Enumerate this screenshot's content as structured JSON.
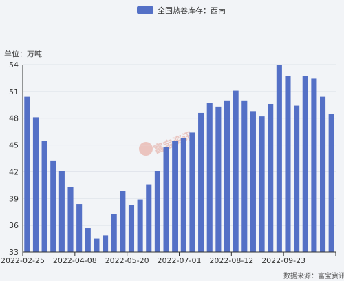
{
  "chart_data": {
    "type": "bar",
    "legend": "全国热卷库存：西南",
    "unit_label": "单位：万吨",
    "source": "数据来源：富宝资讯",
    "watermark": "富宝资讯",
    "colors": {
      "bar": "#5470c6",
      "grid": "#dfe3ea",
      "axis": "#333333"
    },
    "ylim": [
      33,
      54
    ],
    "yticks": [
      33,
      36,
      39,
      42,
      45,
      48,
      51,
      54
    ],
    "xtick_labels": [
      "2022-02-25",
      "2022-04-08",
      "2022-05-20",
      "2022-07-01",
      "2022-08-12",
      "2022-09-23"
    ],
    "xtick_indices": [
      0,
      6,
      12,
      18,
      24,
      30
    ],
    "series": [
      {
        "values": [
          50.4,
          48.1,
          45.5,
          43.2,
          42.1,
          40.3,
          38.4,
          35.7,
          34.5,
          34.9,
          37.3,
          39.8,
          38.3,
          38.9,
          40.6,
          42.1,
          44.8,
          45.5,
          45.8,
          46.4,
          48.6,
          49.7,
          49.3,
          50.0,
          51.1,
          50.0,
          48.8,
          48.2,
          49.6,
          54.0,
          52.7,
          49.4,
          52.7,
          52.5,
          50.4,
          48.5
        ]
      }
    ]
  }
}
